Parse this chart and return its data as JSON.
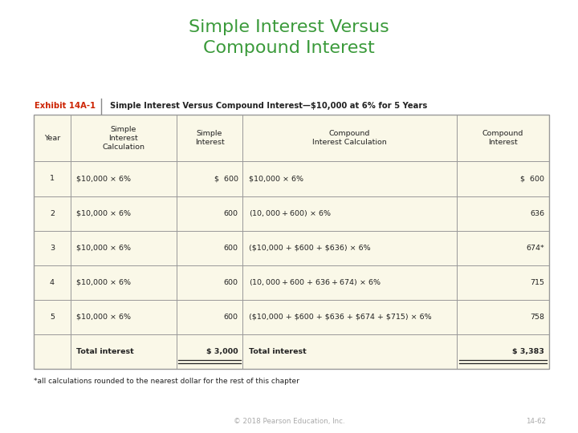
{
  "title_line1": "Simple Interest Versus",
  "title_line2": "Compound Interest",
  "title_color": "#3a9a3a",
  "title_fontsize": 16,
  "exhibit_label": "Exhibit 14A-1",
  "exhibit_color": "#cc2200",
  "exhibit_desc": "  Simple Interest Versus Compound Interest—$10,000 at 6% for 5 Years",
  "table_bg": "#faf8e8",
  "outer_bg": "#ffffff",
  "rows": [
    [
      "1",
      "$10,000 × 6%",
      "$  600",
      "$10,000 × 6%",
      "$  600"
    ],
    [
      "2",
      "$10,000 × 6%",
      "600",
      "($10,000 + $600) × 6%",
      "636"
    ],
    [
      "3",
      "$10,000 × 6%",
      "600",
      "($10,000 + $600 + $636) × 6%",
      "674*"
    ],
    [
      "4",
      "$10,000 × 6%",
      "600",
      "($10,000 + $600 + $636 + $674) × 6%",
      "715"
    ],
    [
      "5",
      "$10,000 × 6%",
      "600",
      "($10,000 + $600 + $636 + $674 + $715) × 6%",
      "758"
    ],
    [
      "",
      "Total interest",
      "$ 3,000",
      "Total interest",
      "$ 3,383"
    ]
  ],
  "footnote": "*all calculations rounded to the nearest dollar for the rest of this chapter",
  "footer_left": "© 2018 Pearson Education, Inc.",
  "footer_right": "14-62",
  "footer_color": "#aaaaaa"
}
